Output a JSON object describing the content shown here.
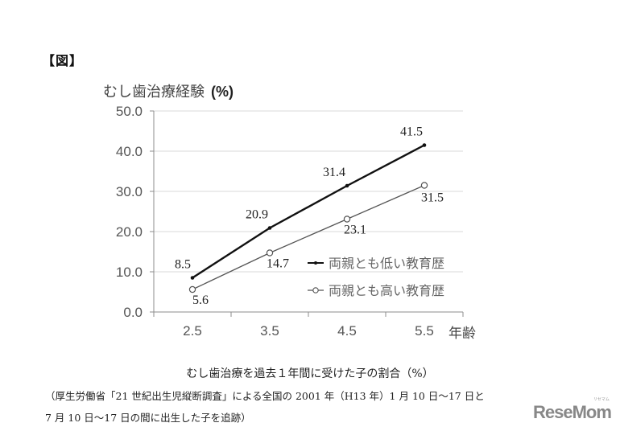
{
  "figure_label": "【図】",
  "y_title": "むし歯治療経験",
  "y_unit": "(%)",
  "x_unit_label": "年齢",
  "caption": "むし歯治療を過去１年間に受けた子の割合（%）",
  "note_line1": "（厚生労働省「21 世紀出生児縦断調査」による全国の 2001 年（H13 年）1 月 10 日～17 日と",
  "note_line2": "7 月 10 日～17 日の間に出生した子を追跡）",
  "logo": {
    "text": "ReseMom",
    "kana": "リセマム"
  },
  "colors": {
    "series_low": "#111111",
    "series_high": "#555555",
    "grid": "#d9d9d9",
    "axis": "#8c8c8c"
  },
  "chart_data": {
    "type": "line",
    "title": "",
    "xlabel": "年齢",
    "ylabel": "むし歯治療経験 (%)",
    "categories": [
      "2.5",
      "3.5",
      "4.5",
      "5.5"
    ],
    "ylim": [
      0,
      50
    ],
    "yticks": [
      "0.0",
      "10.0",
      "20.0",
      "30.0",
      "40.0",
      "50.0"
    ],
    "grid": true,
    "legend_position": "inside-right",
    "series": [
      {
        "name": "両親とも低い教育歴",
        "marker": "filled-dot",
        "values": [
          8.5,
          20.9,
          31.4,
          41.5
        ],
        "labels": [
          "8.5",
          "20.9",
          "31.4",
          "41.5"
        ]
      },
      {
        "name": "両親とも高い教育歴",
        "marker": "open-circle",
        "values": [
          5.6,
          14.7,
          23.1,
          31.5
        ],
        "labels": [
          "5.6",
          "14.7",
          "23.1",
          "31.5"
        ]
      }
    ]
  }
}
